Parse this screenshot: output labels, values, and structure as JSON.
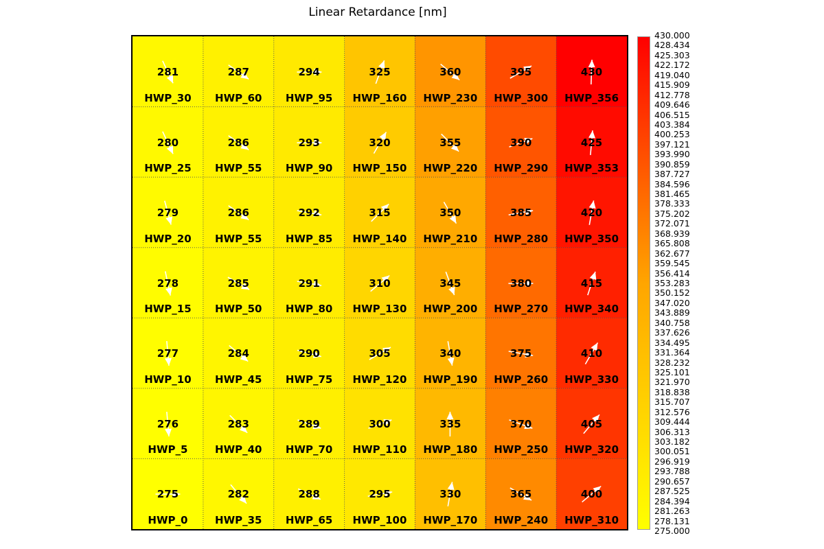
{
  "chart_data": {
    "type": "heatmap",
    "title": "Linear Retardance [nm]",
    "rows": 7,
    "cols": 7,
    "colorscale": {
      "min": 275.0,
      "max": 430.0,
      "colors": [
        "#ffff00",
        "#ffa500",
        "#ff0000"
      ],
      "ticks": [
        "430.000",
        "428.434",
        "425.303",
        "422.172",
        "419.040",
        "415.909",
        "412.778",
        "409.646",
        "406.515",
        "403.384",
        "400.253",
        "397.121",
        "393.990",
        "390.859",
        "387.727",
        "384.596",
        "381.465",
        "378.333",
        "375.202",
        "372.071",
        "368.939",
        "365.808",
        "362.677",
        "359.545",
        "356.414",
        "353.283",
        "350.152",
        "347.020",
        "343.889",
        "340.758",
        "337.626",
        "334.495",
        "331.364",
        "328.232",
        "325.101",
        "321.970",
        "318.838",
        "315.707",
        "312.576",
        "309.444",
        "306.313",
        "303.182",
        "300.051",
        "296.919",
        "293.788",
        "290.657",
        "287.525",
        "284.394",
        "281.263",
        "278.131",
        "275.000"
      ]
    },
    "cells": [
      [
        {
          "value": 281,
          "label": "HWP_30",
          "angle": -65
        },
        {
          "value": 287,
          "label": "HWP_60",
          "angle": -35
        },
        {
          "value": 294,
          "label": "HWP_95",
          "angle": 0
        },
        {
          "value": 325,
          "label": "HWP_160",
          "angle": 70
        },
        {
          "value": 360,
          "label": "HWP_230",
          "angle": -40
        },
        {
          "value": 395,
          "label": "HWP_300",
          "angle": 30
        },
        {
          "value": 430,
          "label": "HWP_356",
          "angle": 88
        }
      ],
      [
        {
          "value": 280,
          "label": "HWP_25",
          "angle": -65
        },
        {
          "value": 286,
          "label": "HWP_55",
          "angle": -35
        },
        {
          "value": 293,
          "label": "HWP_90",
          "angle": 0
        },
        {
          "value": 320,
          "label": "HWP_150",
          "angle": 60
        },
        {
          "value": 355,
          "label": "HWP_220",
          "angle": -45
        },
        {
          "value": 390,
          "label": "HWP_290",
          "angle": 20
        },
        {
          "value": 425,
          "label": "HWP_353",
          "angle": 85
        }
      ],
      [
        {
          "value": 279,
          "label": "HWP_20",
          "angle": -75
        },
        {
          "value": 286,
          "label": "HWP_55",
          "angle": -35
        },
        {
          "value": 292,
          "label": "HWP_85",
          "angle": -10
        },
        {
          "value": 315,
          "label": "HWP_140",
          "angle": 45
        },
        {
          "value": 350,
          "label": "HWP_210",
          "angle": -60
        },
        {
          "value": 385,
          "label": "HWP_280",
          "angle": 10
        },
        {
          "value": 420,
          "label": "HWP_350",
          "angle": 80
        }
      ],
      [
        {
          "value": 278,
          "label": "HWP_15",
          "angle": -78
        },
        {
          "value": 285,
          "label": "HWP_50",
          "angle": -30
        },
        {
          "value": 291,
          "label": "HWP_80",
          "angle": -10
        },
        {
          "value": 310,
          "label": "HWP_130",
          "angle": 40
        },
        {
          "value": 345,
          "label": "HWP_200",
          "angle": -70
        },
        {
          "value": 380,
          "label": "HWP_270",
          "angle": 0
        },
        {
          "value": 415,
          "label": "HWP_340",
          "angle": 72
        }
      ],
      [
        {
          "value": 277,
          "label": "HWP_10",
          "angle": -85
        },
        {
          "value": 284,
          "label": "HWP_45",
          "angle": -40
        },
        {
          "value": 290,
          "label": "HWP_75",
          "angle": -15
        },
        {
          "value": 305,
          "label": "HWP_120",
          "angle": 30
        },
        {
          "value": 340,
          "label": "HWP_190",
          "angle": -80
        },
        {
          "value": 375,
          "label": "HWP_260",
          "angle": -10
        },
        {
          "value": 410,
          "label": "HWP_330",
          "angle": 60
        }
      ],
      [
        {
          "value": 276,
          "label": "HWP_5",
          "angle": -85
        },
        {
          "value": 283,
          "label": "HWP_40",
          "angle": -45
        },
        {
          "value": 289,
          "label": "HWP_70",
          "angle": -20
        },
        {
          "value": 300,
          "label": "HWP_110",
          "angle": 20
        },
        {
          "value": 335,
          "label": "HWP_180",
          "angle": 90
        },
        {
          "value": 370,
          "label": "HWP_250",
          "angle": -20
        },
        {
          "value": 405,
          "label": "HWP_320",
          "angle": 50
        }
      ],
      [
        {
          "value": 275,
          "label": "HWP_0",
          "angle": 0
        },
        {
          "value": 282,
          "label": "HWP_35",
          "angle": -50
        },
        {
          "value": 288,
          "label": "HWP_65",
          "angle": -25
        },
        {
          "value": 295,
          "label": "HWP_100",
          "angle": 10
        },
        {
          "value": 330,
          "label": "HWP_170",
          "angle": 80
        },
        {
          "value": 365,
          "label": "HWP_240",
          "angle": -30
        },
        {
          "value": 400,
          "label": "HWP_310",
          "angle": 40
        }
      ]
    ]
  }
}
